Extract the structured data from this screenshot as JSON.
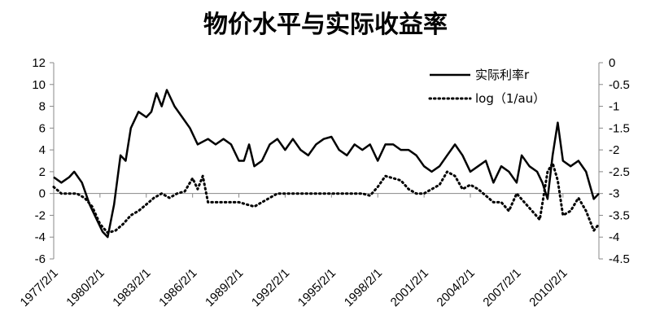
{
  "chart_data": {
    "type": "line",
    "title": "物价水平与实际收益率",
    "xlabel": "",
    "ylabel": "",
    "x_range": [
      "1977/2/1",
      "2012/6/1"
    ],
    "x_tick_labels": [
      "1977/2/1",
      "1980/2/1",
      "1983/2/1",
      "1986/2/1",
      "1989/2/1",
      "1992/2/1",
      "1995/2/1",
      "1998/2/1",
      "2001/2/1",
      "2004/2/1",
      "2007/2/1",
      "2010/2/1"
    ],
    "y_left": {
      "ylim": [
        -6,
        12
      ],
      "ticks": [
        "12",
        "10",
        "8",
        "6",
        "4",
        "2",
        "0",
        "-2",
        "-4",
        "-6"
      ]
    },
    "y_right": {
      "ylim": [
        -4.5,
        0
      ],
      "ticks": [
        "0",
        "-0.5",
        "-1",
        "-1.5",
        "-2",
        "-2.5",
        "-3",
        "-3.5",
        "-4",
        "-4.5"
      ]
    },
    "grid": false,
    "legend_position": "top-right",
    "colors": {
      "series": "#000000",
      "axis": "#888888"
    },
    "series": [
      {
        "name": "实际利率r",
        "axis": "left",
        "style": "solid",
        "points": [
          [
            "1977/2/1",
            1.5
          ],
          [
            "1977/8/1",
            1.0
          ],
          [
            "1978/2/1",
            1.5
          ],
          [
            "1978/6/1",
            2.0
          ],
          [
            "1978/12/1",
            1.0
          ],
          [
            "1979/6/1",
            -1.0
          ],
          [
            "1979/12/1",
            -2.5
          ],
          [
            "1980/4/1",
            -3.5
          ],
          [
            "1980/8/1",
            -4.0
          ],
          [
            "1981/1/1",
            -1.0
          ],
          [
            "1981/6/1",
            3.5
          ],
          [
            "1981/10/1",
            3.0
          ],
          [
            "1982/2/1",
            6.0
          ],
          [
            "1982/8/1",
            7.5
          ],
          [
            "1983/2/1",
            7.0
          ],
          [
            "1983/6/1",
            7.5
          ],
          [
            "1983/10/1",
            9.2
          ],
          [
            "1984/2/1",
            8.0
          ],
          [
            "1984/6/1",
            9.5
          ],
          [
            "1984/12/1",
            8.0
          ],
          [
            "1985/6/1",
            7.0
          ],
          [
            "1985/12/1",
            6.0
          ],
          [
            "1986/6/1",
            4.5
          ],
          [
            "1987/2/1",
            5.0
          ],
          [
            "1987/8/1",
            4.5
          ],
          [
            "1988/2/1",
            5.0
          ],
          [
            "1988/8/1",
            4.5
          ],
          [
            "1989/2/1",
            3.0
          ],
          [
            "1989/6/1",
            3.0
          ],
          [
            "1989/10/1",
            4.5
          ],
          [
            "1990/2/1",
            2.5
          ],
          [
            "1990/8/1",
            3.0
          ],
          [
            "1991/2/1",
            4.5
          ],
          [
            "1991/8/1",
            5.0
          ],
          [
            "1992/2/1",
            4.0
          ],
          [
            "1992/8/1",
            5.0
          ],
          [
            "1993/2/1",
            4.0
          ],
          [
            "1993/8/1",
            3.5
          ],
          [
            "1994/2/1",
            4.5
          ],
          [
            "1994/8/1",
            5.0
          ],
          [
            "1995/2/1",
            5.2
          ],
          [
            "1995/8/1",
            4.0
          ],
          [
            "1996/2/1",
            3.5
          ],
          [
            "1996/8/1",
            4.5
          ],
          [
            "1997/2/1",
            4.0
          ],
          [
            "1997/8/1",
            4.5
          ],
          [
            "1998/2/1",
            3.0
          ],
          [
            "1998/8/1",
            4.5
          ],
          [
            "1999/2/1",
            4.5
          ],
          [
            "1999/8/1",
            4.0
          ],
          [
            "2000/2/1",
            4.0
          ],
          [
            "2000/8/1",
            3.5
          ],
          [
            "2001/2/1",
            2.5
          ],
          [
            "2001/8/1",
            2.0
          ],
          [
            "2002/2/1",
            2.5
          ],
          [
            "2002/8/1",
            3.5
          ],
          [
            "2003/2/1",
            4.5
          ],
          [
            "2003/8/1",
            3.5
          ],
          [
            "2004/2/1",
            2.0
          ],
          [
            "2004/8/1",
            2.5
          ],
          [
            "2005/2/1",
            3.0
          ],
          [
            "2005/8/1",
            1.0
          ],
          [
            "2006/2/1",
            2.5
          ],
          [
            "2006/8/1",
            2.0
          ],
          [
            "2007/2/1",
            1.0
          ],
          [
            "2007/6/1",
            3.5
          ],
          [
            "2007/12/1",
            2.5
          ],
          [
            "2008/6/1",
            2.0
          ],
          [
            "2008/10/1",
            1.0
          ],
          [
            "2009/2/1",
            -0.5
          ],
          [
            "2009/6/1",
            3.5
          ],
          [
            "2009/10/1",
            6.5
          ],
          [
            "2010/2/1",
            3.0
          ],
          [
            "2010/8/1",
            2.5
          ],
          [
            "2011/2/1",
            3.0
          ],
          [
            "2011/8/1",
            2.0
          ],
          [
            "2012/2/1",
            -0.5
          ],
          [
            "2012/6/1",
            0.0
          ]
        ]
      },
      {
        "name": "log（1/au）",
        "axis": "right",
        "style": "dotted",
        "points": [
          [
            "1977/2/1",
            -2.85
          ],
          [
            "1977/8/1",
            -3.0
          ],
          [
            "1978/2/1",
            -3.0
          ],
          [
            "1978/8/1",
            -3.0
          ],
          [
            "1979/2/1",
            -3.1
          ],
          [
            "1979/8/1",
            -3.3
          ],
          [
            "1980/2/1",
            -3.7
          ],
          [
            "1980/8/1",
            -3.9
          ],
          [
            "1981/2/1",
            -3.85
          ],
          [
            "1981/8/1",
            -3.7
          ],
          [
            "1982/2/1",
            -3.5
          ],
          [
            "1982/8/1",
            -3.4
          ],
          [
            "1983/2/1",
            -3.25
          ],
          [
            "1983/8/1",
            -3.1
          ],
          [
            "1984/2/1",
            -3.0
          ],
          [
            "1984/8/1",
            -3.1
          ],
          [
            "1985/2/1",
            -3.0
          ],
          [
            "1985/8/1",
            -2.95
          ],
          [
            "1986/2/1",
            -2.65
          ],
          [
            "1986/6/1",
            -2.9
          ],
          [
            "1986/10/1",
            -2.6
          ],
          [
            "1987/2/1",
            -3.2
          ],
          [
            "1987/8/1",
            -3.2
          ],
          [
            "1988/2/1",
            -3.2
          ],
          [
            "1988/8/1",
            -3.2
          ],
          [
            "1989/2/1",
            -3.2
          ],
          [
            "1989/8/1",
            -3.25
          ],
          [
            "1990/2/1",
            -3.3
          ],
          [
            "1990/8/1",
            -3.2
          ],
          [
            "1991/2/1",
            -3.1
          ],
          [
            "1991/8/1",
            -3.0
          ],
          [
            "1992/2/1",
            -3.0
          ],
          [
            "1993/2/1",
            -3.0
          ],
          [
            "1994/2/1",
            -3.0
          ],
          [
            "1995/2/1",
            -3.0
          ],
          [
            "1996/2/1",
            -3.0
          ],
          [
            "1997/2/1",
            -3.0
          ],
          [
            "1997/8/1",
            -3.05
          ],
          [
            "1998/2/1",
            -2.85
          ],
          [
            "1998/8/1",
            -2.6
          ],
          [
            "1999/2/1",
            -2.65
          ],
          [
            "1999/8/1",
            -2.7
          ],
          [
            "2000/2/1",
            -2.9
          ],
          [
            "2000/8/1",
            -3.0
          ],
          [
            "2001/2/1",
            -3.0
          ],
          [
            "2001/8/1",
            -2.9
          ],
          [
            "2002/2/1",
            -2.8
          ],
          [
            "2002/8/1",
            -2.5
          ],
          [
            "2003/2/1",
            -2.6
          ],
          [
            "2003/8/1",
            -2.9
          ],
          [
            "2004/2/1",
            -2.8
          ],
          [
            "2004/8/1",
            -2.9
          ],
          [
            "2005/2/1",
            -3.05
          ],
          [
            "2005/8/1",
            -3.2
          ],
          [
            "2006/2/1",
            -3.2
          ],
          [
            "2006/8/1",
            -3.4
          ],
          [
            "2007/2/1",
            -3.0
          ],
          [
            "2007/8/1",
            -3.2
          ],
          [
            "2008/2/1",
            -3.4
          ],
          [
            "2008/8/1",
            -3.6
          ],
          [
            "2009/2/1",
            -2.5
          ],
          [
            "2009/6/1",
            -2.3
          ],
          [
            "2009/10/1",
            -2.7
          ],
          [
            "2010/2/1",
            -3.5
          ],
          [
            "2010/8/1",
            -3.4
          ],
          [
            "2011/2/1",
            -3.1
          ],
          [
            "2011/8/1",
            -3.4
          ],
          [
            "2012/2/1",
            -3.85
          ],
          [
            "2012/6/1",
            -3.7
          ]
        ]
      }
    ]
  }
}
